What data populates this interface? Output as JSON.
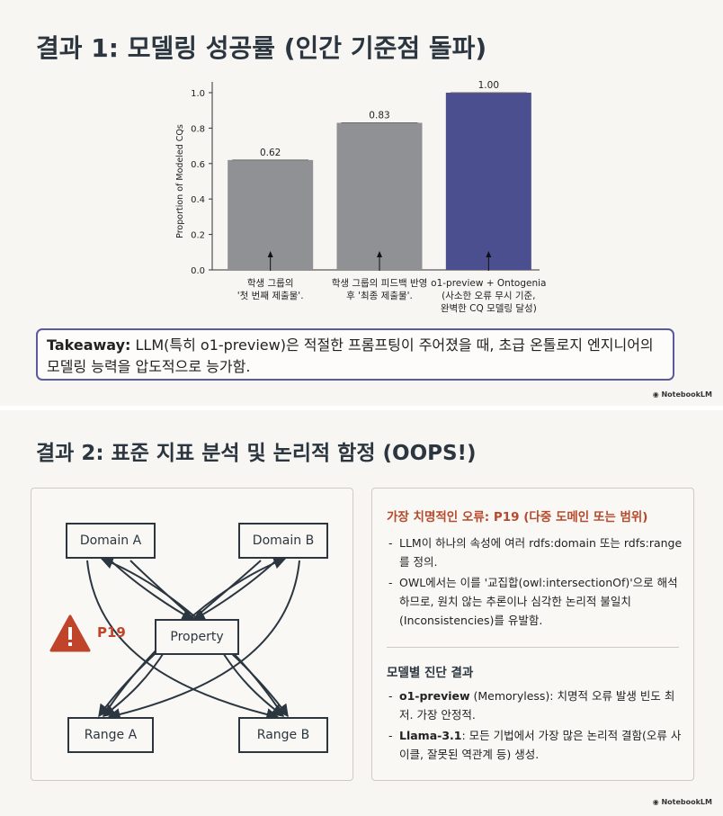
{
  "slide1": {
    "title": "결과 1: 모델링 성공률 (인간 기준점 돌파)",
    "chart_data": {
      "type": "bar",
      "ylabel": "Proportion of Modeled CQs",
      "ylim": [
        0,
        1.0
      ],
      "yticks": [
        "0.0",
        "0.2",
        "0.4",
        "0.6",
        "0.8",
        "1.0"
      ],
      "categories": [
        "학생 그룹의 '첫 번째 제출물'.",
        "학생 그룹의 피드백 반영 후 '최종 제출물'.",
        "o1-preview + Ontogenia (사소한 오류 무시 기준, 완벽한 CQ 모델링 달성)"
      ],
      "values": [
        0.62,
        0.83,
        1.0
      ],
      "value_labels": [
        "0.62",
        "0.83",
        "1.00"
      ],
      "colors": [
        "#8f9194",
        "#8f9194",
        "#4b4f8f"
      ],
      "annotations": [
        [
          "학생 그룹의",
          "'첫 번째 제출물'."
        ],
        [
          "학생 그룹의 피드백 반영",
          "후 '최종 제출물'."
        ],
        [
          "o1-preview + Ontogenia",
          "(사소한 오류 무시 기준,",
          "완벽한 CQ 모델링 달성)"
        ]
      ]
    },
    "takeaway_label": "Takeaway:",
    "takeaway_text": " LLM(특히 o1-preview)은 적절한 프롬프팅이 주어졌을 때, 초급 온톨로지 엔지니어의 모델링 능력을 압도적으로 능가함.",
    "watermark": "NotebookLM"
  },
  "slide2": {
    "title": "결과 2: 표준 지표 분석 및 논리적 함정 (OOPS!)",
    "diagram": {
      "nodes": [
        "Domain A",
        "Domain B",
        "Property",
        "Range A",
        "Range B"
      ],
      "warning_label": "P19",
      "warning_color": "#c0442a"
    },
    "right": {
      "heading": "가장 치명적인 오류: P19 (다중 도메인 또는 범위)",
      "bullets": [
        "LLM이 하나의 속성에 여러 rdfs:domain 또는 rdfs:range를 정의.",
        "OWL에서는 이를 '교집합(owl:intersectionOf)'으로 해석하므로, 원치 않는 추론이나 심각한 논리적 불일치(Inconsistencies)를 유발함."
      ],
      "subheading": "모델별 진단 결과",
      "results": [
        {
          "model": "o1-preview",
          "text": " (Memoryless): 치명적 오류 발생 빈도 최저. 가장 안정적."
        },
        {
          "model": "Llama-3.1",
          "text": ": 모든 기법에서 가장 많은 논리적 결함(오류 사이클, 잘못된 역관계 등) 생성."
        }
      ]
    },
    "watermark": "NotebookLM"
  }
}
